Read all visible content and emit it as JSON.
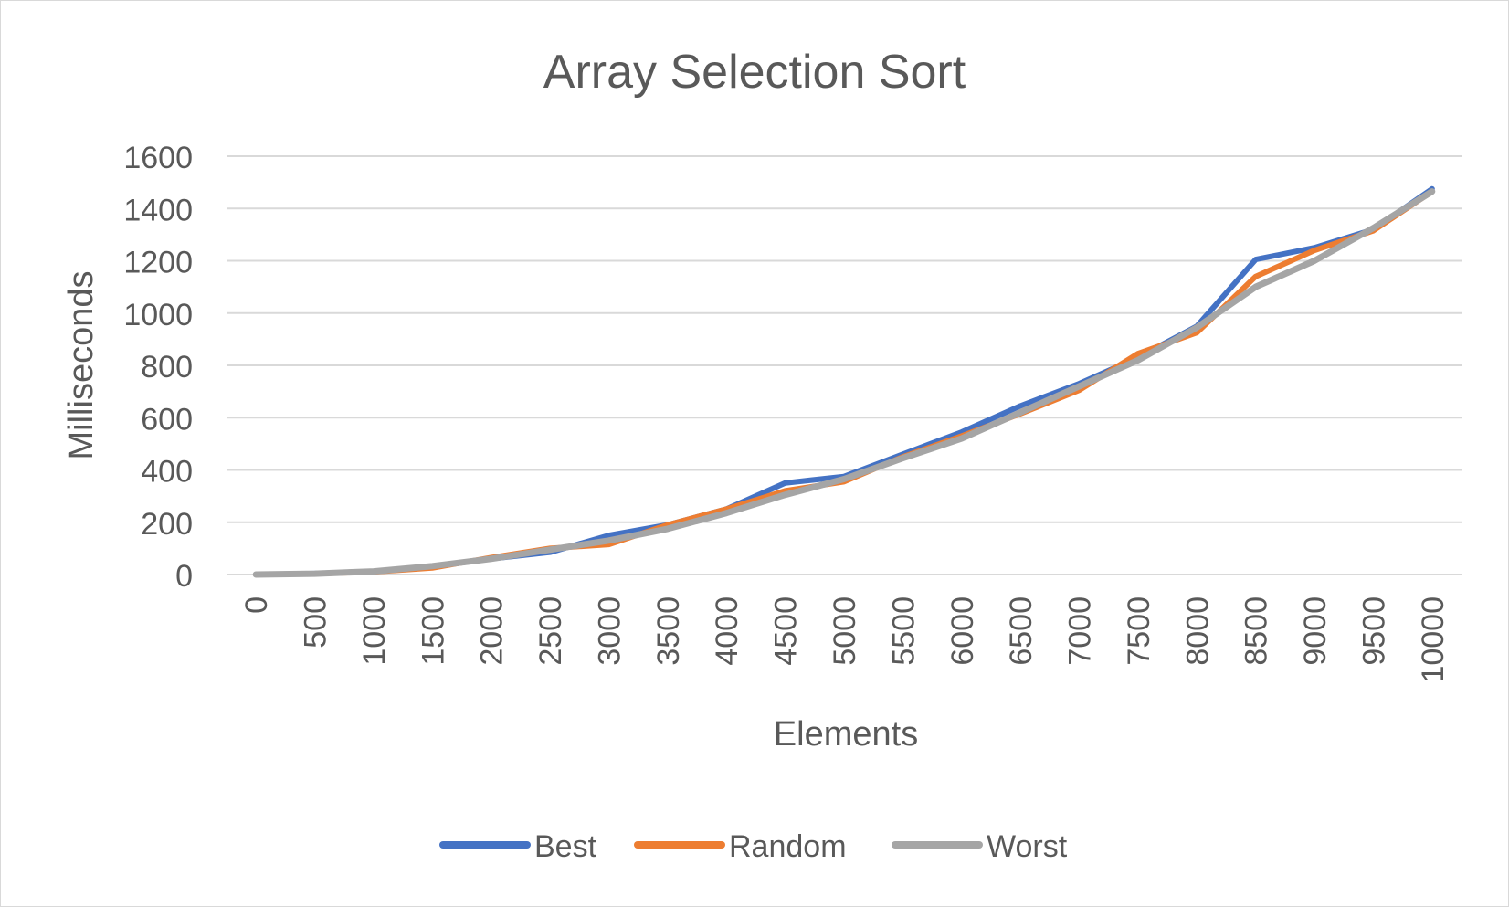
{
  "chart_data": {
    "type": "line",
    "title": "Array Selection Sort",
    "xlabel": "Elements",
    "ylabel": "Milliseconds",
    "ylim": [
      0,
      1600
    ],
    "yticks": [
      0,
      200,
      400,
      600,
      800,
      1000,
      1200,
      1400,
      1600
    ],
    "categories": [
      "0",
      "500",
      "1000",
      "1500",
      "2000",
      "2500",
      "3000",
      "3500",
      "4000",
      "4500",
      "5000",
      "5500",
      "6000",
      "6500",
      "7000",
      "7500",
      "8000",
      "8500",
      "9000",
      "9500",
      "10000"
    ],
    "grid": true,
    "legend_position": "bottom",
    "series": [
      {
        "name": "Best",
        "color": "#4472c4",
        "values": [
          0,
          4,
          12,
          30,
          60,
          85,
          150,
          190,
          250,
          350,
          375,
          460,
          545,
          645,
          730,
          830,
          950,
          1205,
          1250,
          1320,
          1475
        ]
      },
      {
        "name": "Random",
        "color": "#ed7d31",
        "values": [
          0,
          3,
          10,
          25,
          65,
          100,
          115,
          190,
          250,
          320,
          355,
          450,
          530,
          615,
          705,
          845,
          925,
          1140,
          1240,
          1315,
          1465
        ]
      },
      {
        "name": "Worst",
        "color": "#a5a5a5",
        "values": [
          0,
          3,
          12,
          32,
          60,
          95,
          130,
          175,
          235,
          305,
          365,
          445,
          520,
          620,
          720,
          820,
          945,
          1100,
          1200,
          1325,
          1465
        ]
      }
    ]
  }
}
